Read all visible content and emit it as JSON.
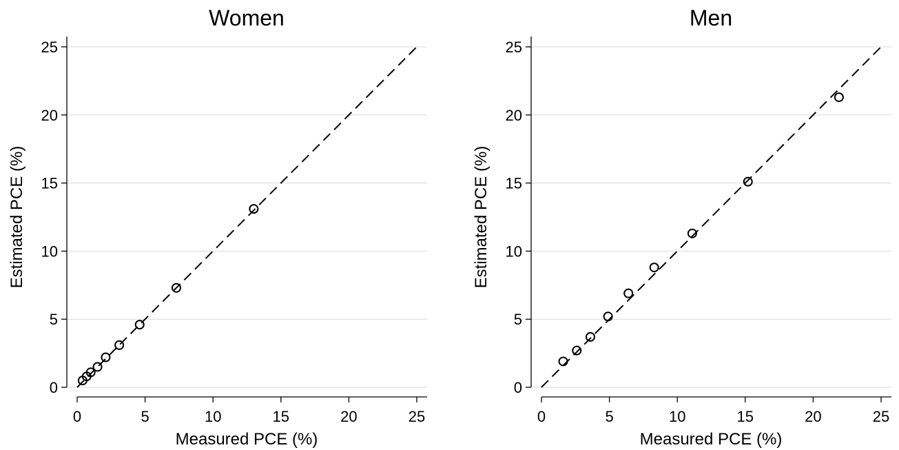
{
  "chart_data": [
    {
      "type": "scatter",
      "title": "Women",
      "xlabel": "Measured PCE (%)",
      "ylabel": "Estimated PCE (%)",
      "xlim": [
        0,
        25
      ],
      "ylim": [
        0,
        25
      ],
      "xticks": [
        0,
        5,
        10,
        15,
        20,
        25
      ],
      "yticks": [
        0,
        5,
        10,
        15,
        20,
        25
      ],
      "grid": "horizontal",
      "reference_line": "y = x (dashed)",
      "series": [
        {
          "marker": "hollow-circle",
          "color": "#000000",
          "points": [
            {
              "x": 0.4,
              "y": 0.5
            },
            {
              "x": 0.7,
              "y": 0.8
            },
            {
              "x": 1.0,
              "y": 1.1
            },
            {
              "x": 1.5,
              "y": 1.5
            },
            {
              "x": 2.1,
              "y": 2.2
            },
            {
              "x": 3.1,
              "y": 3.1
            },
            {
              "x": 4.6,
              "y": 4.6
            },
            {
              "x": 7.3,
              "y": 7.3
            },
            {
              "x": 13.0,
              "y": 13.1
            }
          ]
        }
      ]
    },
    {
      "type": "scatter",
      "title": "Men",
      "xlabel": "Measured PCE (%)",
      "ylabel": "Estimated PCE (%)",
      "xlim": [
        0,
        25
      ],
      "ylim": [
        0,
        25
      ],
      "xticks": [
        0,
        5,
        10,
        15,
        20,
        25
      ],
      "yticks": [
        0,
        5,
        10,
        15,
        20,
        25
      ],
      "grid": "horizontal",
      "reference_line": "y = x (dashed)",
      "series": [
        {
          "marker": "hollow-circle",
          "color": "#000000",
          "points": [
            {
              "x": 1.6,
              "y": 1.9
            },
            {
              "x": 2.6,
              "y": 2.7
            },
            {
              "x": 3.6,
              "y": 3.7
            },
            {
              "x": 4.9,
              "y": 5.2
            },
            {
              "x": 6.4,
              "y": 6.9
            },
            {
              "x": 8.3,
              "y": 8.8
            },
            {
              "x": 11.1,
              "y": 11.3
            },
            {
              "x": 15.2,
              "y": 15.1
            },
            {
              "x": 21.9,
              "y": 21.3
            }
          ]
        }
      ]
    }
  ]
}
